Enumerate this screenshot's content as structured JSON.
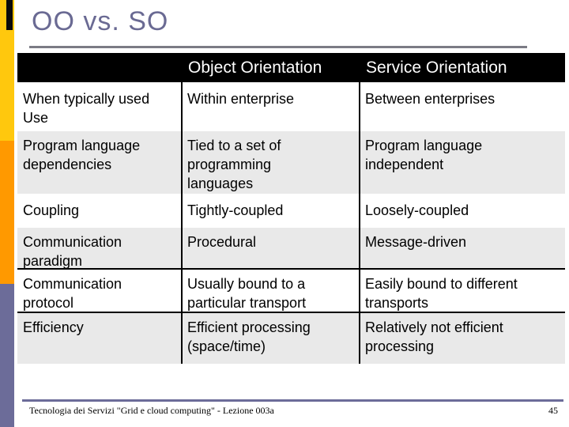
{
  "slide": {
    "title": "OO vs. SO",
    "footer_text": "Tecnologia dei Servizi \"Grid e cloud computing\" - Lezione 003a",
    "page_number": "45"
  },
  "table": {
    "columns": [
      "",
      "Object Orientation",
      "Service Orientation"
    ],
    "rows": [
      {
        "cells": [
          "When typically used Use",
          "Within enterprise",
          "Between enterprises"
        ]
      },
      {
        "cells": [
          "Program language dependencies",
          "Tied to a set of programming languages",
          "Program language independent"
        ]
      },
      {
        "cells": [
          "Coupling",
          "Tightly-coupled",
          "Loosely-coupled"
        ]
      },
      {
        "cells": [
          "Communication paradigm",
          "Procedural",
          "Message-driven"
        ]
      },
      {
        "cells": [
          "Communication protocol",
          "Usually bound to a particular transport",
          "Easily bound to different transports"
        ]
      },
      {
        "cells": [
          "Efficiency",
          "Efficient processing (space/time)",
          "Relatively not efficient processing"
        ]
      }
    ]
  },
  "colors": {
    "accent_yellow": "#FFC80D",
    "accent_orange": "#FF9900",
    "accent_slate": "#6C6C99",
    "title_text": "#6A6A93",
    "table_header_bg": "#000000",
    "table_header_text": "#FFFFFF",
    "row_alt_bg": "#E9E9E9"
  }
}
